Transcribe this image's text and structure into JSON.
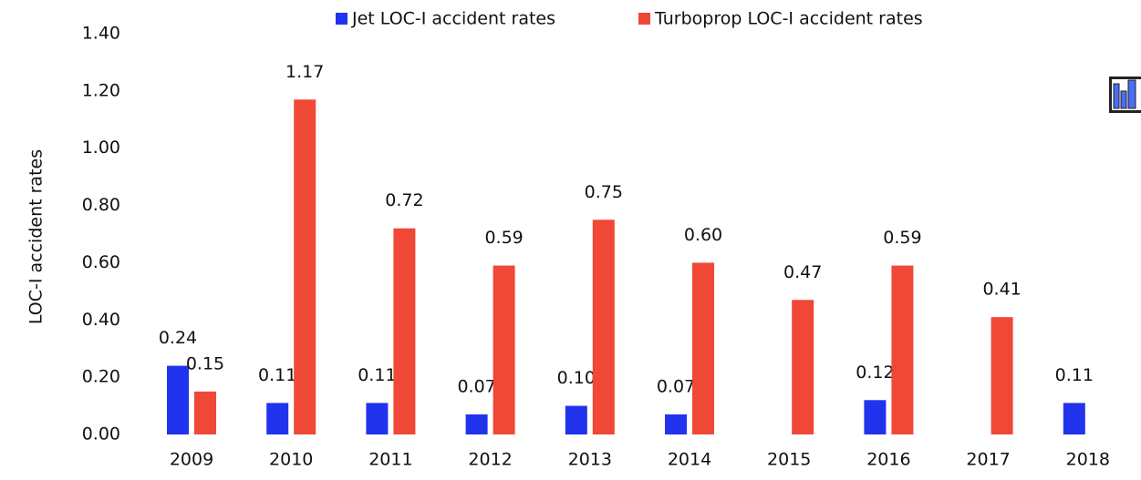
{
  "chart_data": {
    "type": "bar",
    "categories": [
      "2009",
      "2010",
      "2011",
      "2012",
      "2013",
      "2014",
      "2015",
      "2016",
      "2017",
      "2018"
    ],
    "y_label": "LOC-I accident rates",
    "series": [
      {
        "name": "Jet LOC-I accident rates",
        "color": "#2233ee",
        "values": [
          0.24,
          0.11,
          0.11,
          0.07,
          0.1,
          0.07,
          null,
          0.12,
          null,
          0.11
        ],
        "value_labels": [
          "0.24",
          "0.11",
          "0.11",
          "0.07",
          "0.10",
          "0.07",
          null,
          "0.12",
          null,
          "0.11"
        ]
      },
      {
        "name": "Turboprop LOC-I accident rates",
        "color": "#f04836",
        "values": [
          0.15,
          1.17,
          0.72,
          0.59,
          0.75,
          0.6,
          0.47,
          0.59,
          0.41,
          null
        ],
        "value_labels": [
          "0.15",
          "1.17",
          "0.72",
          "0.59",
          "0.75",
          "0.60",
          "0.47",
          "0.59",
          "0.41",
          null
        ]
      }
    ],
    "ylim": [
      0,
      1.4
    ],
    "yticks": [
      {
        "value": 0,
        "label": "0.00"
      },
      {
        "value": 0.2,
        "label": "0.20"
      },
      {
        "value": 0.4,
        "label": "0.40"
      },
      {
        "value": 0.6,
        "label": "0.60"
      },
      {
        "value": 0.8,
        "label": "0.80"
      },
      {
        "value": 1.0,
        "label": "1.00"
      },
      {
        "value": 1.2,
        "label": "1.20"
      },
      {
        "value": 1.4,
        "label": "1.40"
      }
    ],
    "grid": false,
    "legend": "top"
  }
}
